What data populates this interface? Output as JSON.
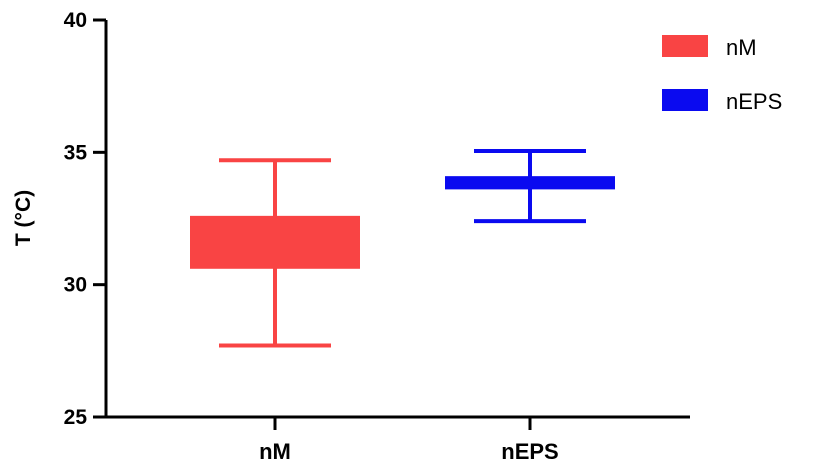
{
  "chart_data": {
    "type": "box",
    "ylabel": "T (°C)",
    "ylim": [
      25,
      40
    ],
    "yticks": [
      25,
      30,
      35,
      40
    ],
    "categories": [
      "nM",
      "nEPS"
    ],
    "series": [
      {
        "name": "nM",
        "color": "#f94444",
        "min": 27.7,
        "q1": 30.6,
        "median": 31.7,
        "q3": 32.6,
        "max": 34.7
      },
      {
        "name": "nEPS",
        "color": "#0a0af0",
        "min": 32.4,
        "q1": 33.6,
        "median": 33.85,
        "q3": 34.1,
        "max": 35.05
      }
    ],
    "legend_position": "top-right",
    "grid": false
  }
}
